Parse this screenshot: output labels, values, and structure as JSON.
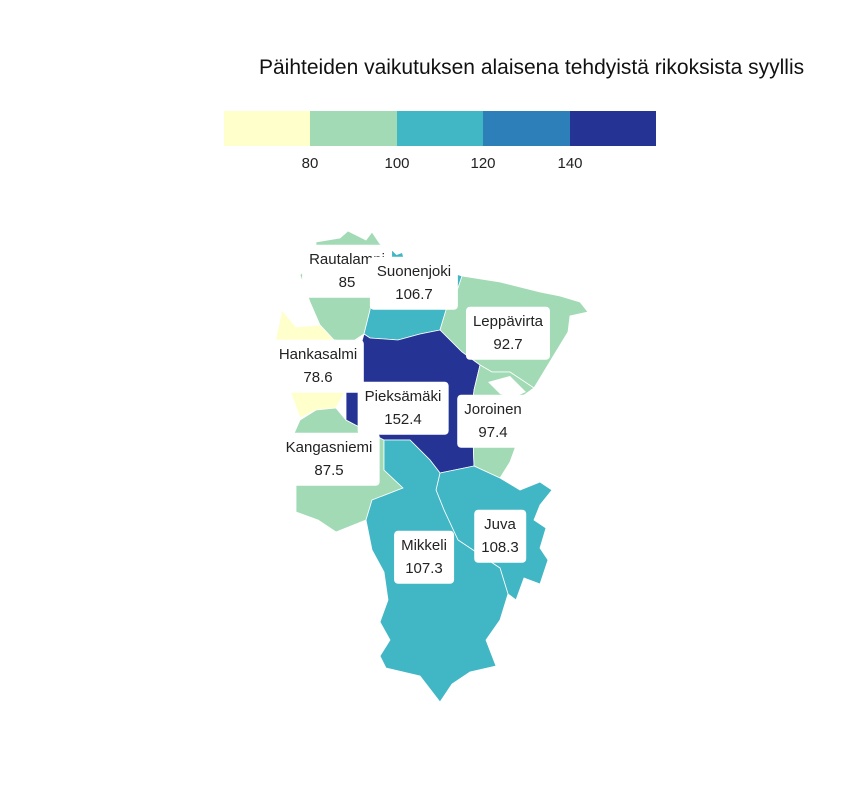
{
  "title": "Päihteiden vaikutuksen alaisena tehdyistä rikoksista syyllis",
  "legend": {
    "colors": [
      "#ffffcc",
      "#a1dab4",
      "#41b6c4",
      "#2c7fb8",
      "#253494"
    ],
    "ticks": [
      "80",
      "100",
      "120",
      "140"
    ]
  },
  "regions": [
    {
      "name": "Rautalampi",
      "value": "85",
      "color": "#a1dab4"
    },
    {
      "name": "Suonenjoki",
      "value": "106.7",
      "color": "#41b6c4"
    },
    {
      "name": "Leppävirta",
      "value": "92.7",
      "color": "#a1dab4"
    },
    {
      "name": "Hankasalmi",
      "value": "78.6",
      "color": "#ffffcc"
    },
    {
      "name": "Pieksämäki",
      "value": "152.4",
      "color": "#253494"
    },
    {
      "name": "Joroinen",
      "value": "97.4",
      "color": "#a1dab4"
    },
    {
      "name": "Kangasniemi",
      "value": "87.5",
      "color": "#a1dab4"
    },
    {
      "name": "Mikkeli",
      "value": "107.3",
      "color": "#41b6c4"
    },
    {
      "name": "Juva",
      "value": "108.3",
      "color": "#41b6c4"
    }
  ]
}
